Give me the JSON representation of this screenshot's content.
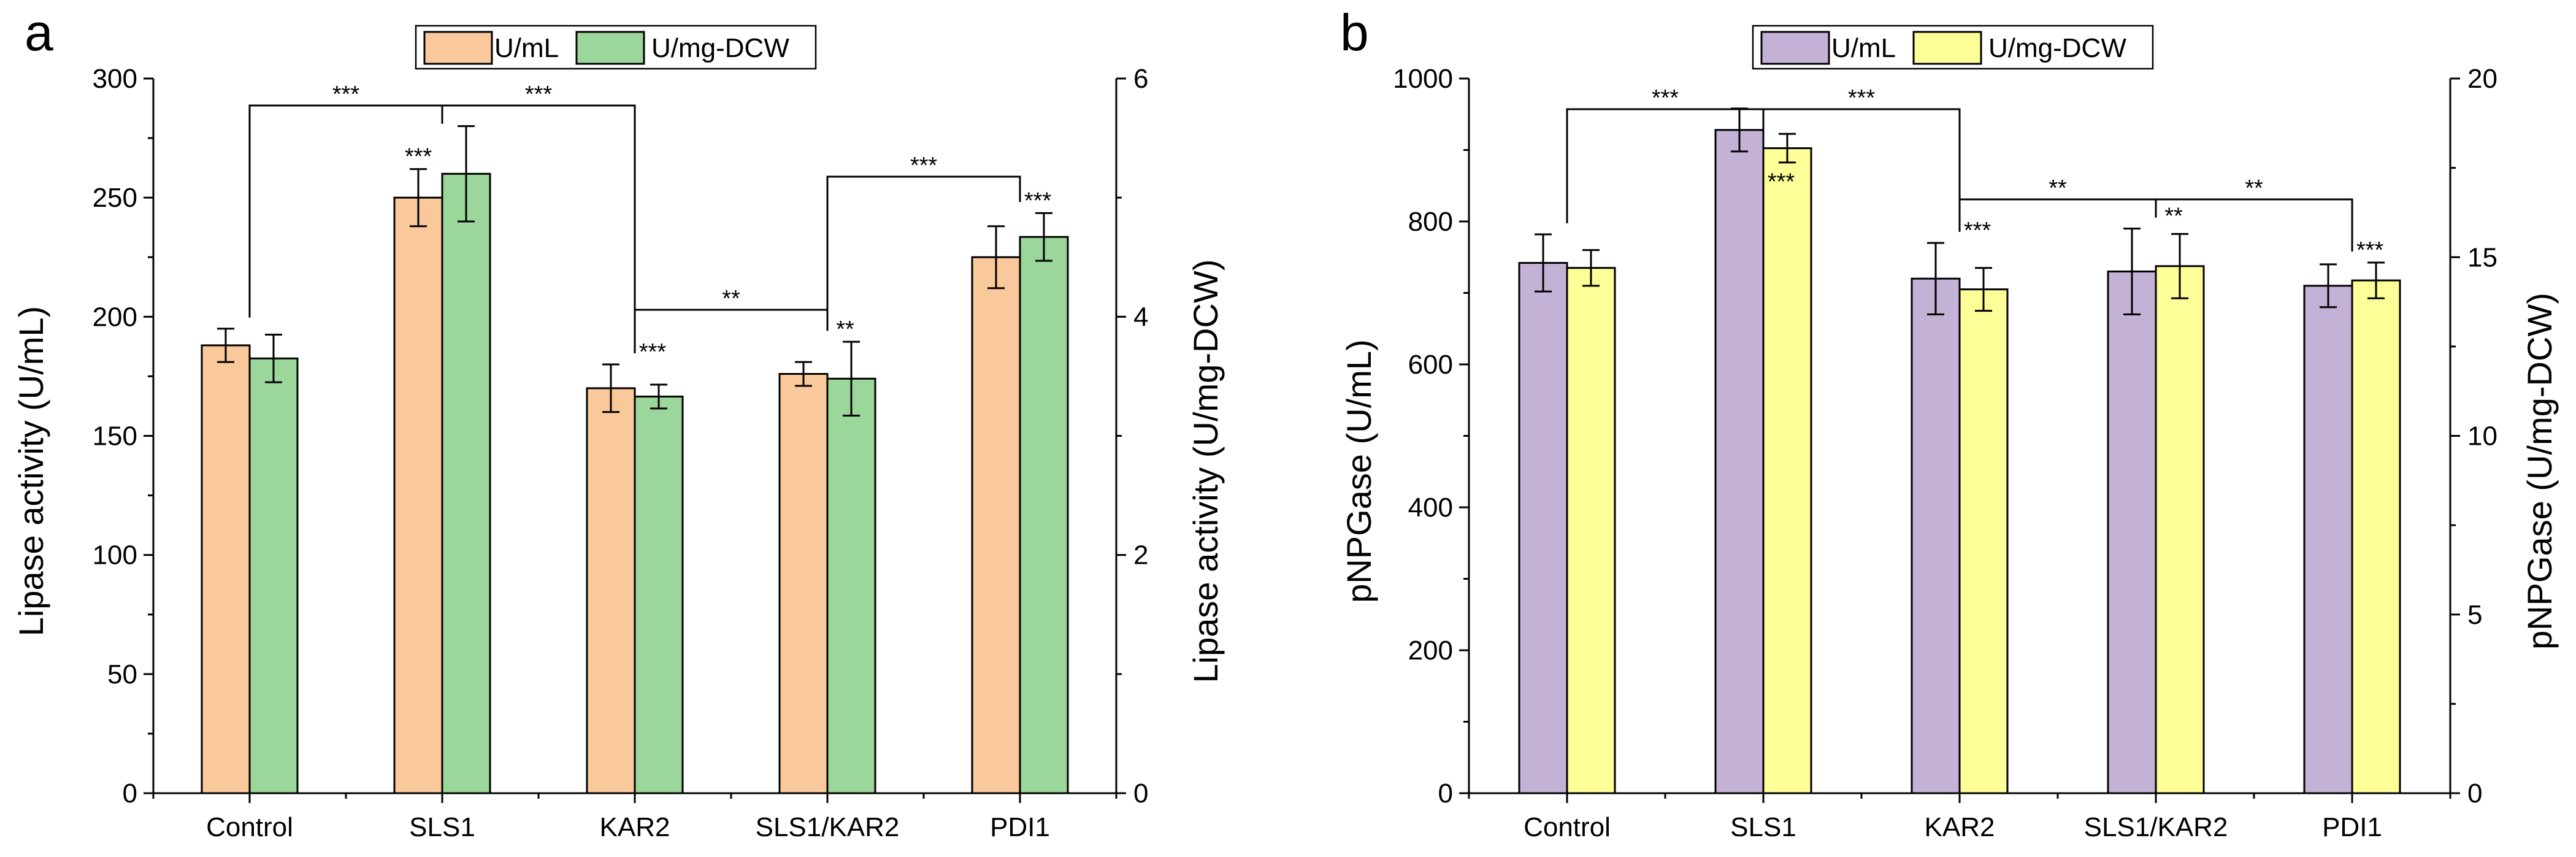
{
  "chart_data": [
    {
      "type": "bar",
      "panel_label": "a",
      "categories": [
        "Control",
        "SLS1",
        "KAR2",
        "SLS1/KAR2",
        "PDI1"
      ],
      "series": [
        {
          "name": "U/mL",
          "axis": "left",
          "color": "#F9C89B",
          "values": [
            188,
            250,
            170,
            176,
            225
          ],
          "errors": [
            7,
            12,
            10,
            5,
            13
          ]
        },
        {
          "name": "U/mg-DCW",
          "axis": "right",
          "color": "#9BD79B",
          "values": [
            3.65,
            5.2,
            3.33,
            3.48,
            4.67
          ],
          "errors": [
            0.2,
            0.4,
            0.1,
            0.31,
            0.2
          ]
        }
      ],
      "ylabel": "Lipase activity (U/mL)",
      "ylabel_right": "Lipase activity (U/mg-DCW)",
      "ylim": [
        0,
        300
      ],
      "ylim_right": [
        0,
        6
      ],
      "yticks": [
        "0",
        "50",
        "100",
        "150",
        "200",
        "250",
        "300"
      ],
      "yticks_right": [
        "0",
        "2",
        "4",
        "6"
      ],
      "legend": [
        "U/mL",
        "U/mg-DCW"
      ],
      "legend_position": "top-center",
      "annotations": {
        "bar_stars": [
          {
            "category": "SLS1",
            "text": "***"
          },
          {
            "category": "KAR2",
            "text": "***"
          },
          {
            "category": "SLS1/KAR2",
            "text": "**"
          },
          {
            "category": "PDI1",
            "text": "***"
          }
        ],
        "brackets": [
          {
            "from": "Control",
            "to": "SLS1",
            "text": "***"
          },
          {
            "from": "SLS1",
            "to": "KAR2",
            "text": "***"
          },
          {
            "from": "KAR2",
            "to": "SLS1/KAR2",
            "text": "**"
          },
          {
            "from": "SLS1/KAR2",
            "to": "PDI1",
            "text": "***"
          }
        ]
      }
    },
    {
      "type": "bar",
      "panel_label": "b",
      "categories": [
        "Control",
        "SLS1",
        "KAR2",
        "SLS1/KAR2",
        "PDI1"
      ],
      "series": [
        {
          "name": "U/mL",
          "axis": "left",
          "color": "#C4B2D6",
          "values": [
            742,
            928,
            720,
            730,
            710
          ],
          "errors": [
            40,
            30,
            50,
            60,
            30
          ]
        },
        {
          "name": "U/mg-DCW",
          "axis": "right",
          "color": "#FEFE99",
          "values": [
            14.7,
            18.05,
            14.1,
            14.75,
            14.35
          ],
          "errors": [
            0.5,
            0.4,
            0.6,
            0.9,
            0.5
          ]
        }
      ],
      "ylabel": "pNPGase (U/mL)",
      "ylabel_right": "pNPGase (U/mg-DCW)",
      "ylim": [
        0,
        1000
      ],
      "ylim_right": [
        0,
        20
      ],
      "yticks": [
        "0",
        "200",
        "400",
        "600",
        "800",
        "1000"
      ],
      "yticks_right": [
        "0",
        "5",
        "10",
        "15",
        "20"
      ],
      "legend": [
        "U/mL",
        "U/mg-DCW"
      ],
      "legend_position": "top-center",
      "annotations": {
        "bar_stars": [
          {
            "category": "SLS1",
            "text": "***"
          },
          {
            "category": "KAR2",
            "text": "***"
          },
          {
            "category": "SLS1/KAR2",
            "text": "**"
          },
          {
            "category": "PDI1",
            "text": "***"
          }
        ],
        "brackets": [
          {
            "from": "Control",
            "to": "SLS1",
            "text": "***"
          },
          {
            "from": "SLS1",
            "to": "KAR2",
            "text": "***"
          },
          {
            "from": "KAR2",
            "to": "SLS1/KAR2",
            "text": "**"
          },
          {
            "from": "SLS1/KAR2",
            "to": "PDI1",
            "text": "**"
          }
        ]
      }
    }
  ]
}
